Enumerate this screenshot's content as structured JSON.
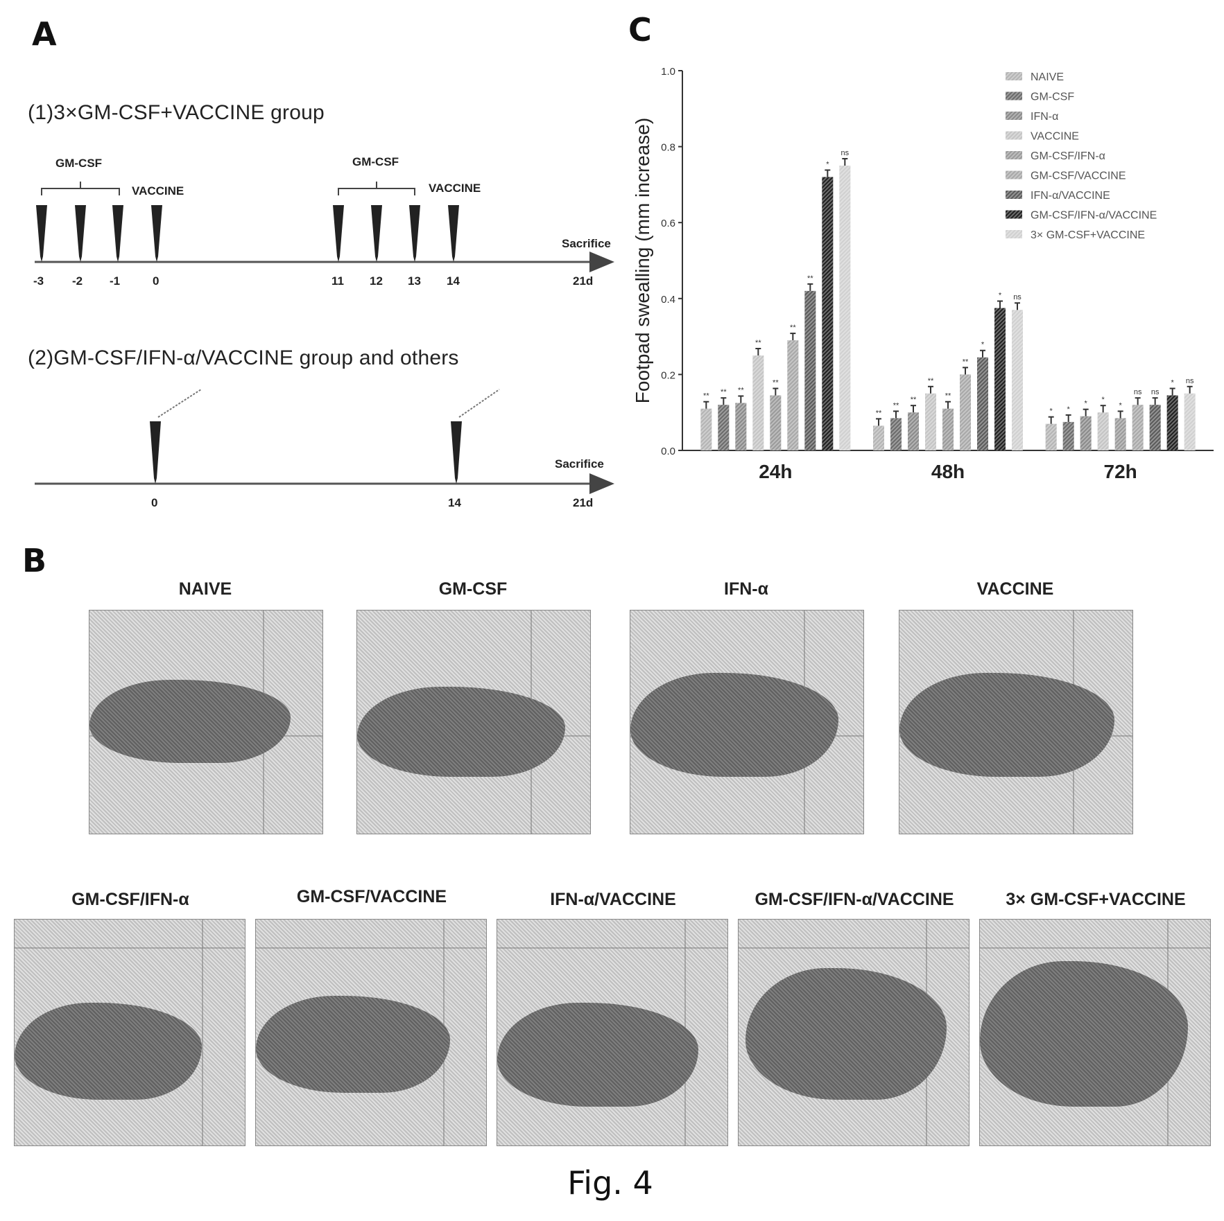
{
  "panels": {
    "a": "A",
    "b": "B",
    "c": "C"
  },
  "caption": "Fig. 4",
  "timeline1": {
    "title": "(1)3×GM-CSF+VACCINE group",
    "gm_label_1": "GM-CSF",
    "vac_label_1": "VACCINE",
    "gm_label_2": "GM-CSF",
    "vac_label_2": "VACCINE",
    "end_label": "Sacrifice",
    "ticks": [
      "-3",
      "-2",
      "-1",
      "0",
      "11",
      "12",
      "13",
      "14",
      "21d"
    ]
  },
  "timeline2": {
    "title": "(2)GM-CSF/IFN-α/VACCINE group and others",
    "end_label": "Sacrifice",
    "ticks": [
      "0",
      "14",
      "21d"
    ]
  },
  "photos": {
    "row1": [
      "NAIVE",
      "GM-CSF",
      "IFN-α",
      "VACCINE"
    ],
    "row2": [
      "GM-CSF/IFN-α",
      "GM-CSF/VACCINE",
      "IFN-α/VACCINE",
      "GM-CSF/IFN-α/VACCINE",
      "3× GM-CSF+VACCINE"
    ]
  },
  "chart_data": {
    "type": "bar",
    "title": "",
    "xlabel": "",
    "ylabel": "Footpad swealling (mm increase)",
    "ylim": [
      0.0,
      1.0
    ],
    "yticks": [
      "0.0",
      "0.2",
      "0.4",
      "0.6",
      "0.8",
      "1.0"
    ],
    "categories": [
      "24h",
      "48h",
      "72h"
    ],
    "grid": false,
    "legend_position": "top-right",
    "series": [
      {
        "name": "NAIVE",
        "values": [
          0.11,
          0.065,
          0.07
        ],
        "sig": [
          "**",
          "**",
          "*"
        ],
        "color": "#b4b4b4"
      },
      {
        "name": "GM-CSF",
        "values": [
          0.12,
          0.085,
          0.075
        ],
        "sig": [
          "**",
          "**",
          "*"
        ],
        "color": "#6a6a6a"
      },
      {
        "name": "IFN-α",
        "values": [
          0.125,
          0.1,
          0.09
        ],
        "sig": [
          "**",
          "**",
          "*"
        ],
        "color": "#8a8a8a"
      },
      {
        "name": "VACCINE",
        "values": [
          0.25,
          0.15,
          0.1
        ],
        "sig": [
          "**",
          "**",
          "*"
        ],
        "color": "#c4c4c4"
      },
      {
        "name": "GM-CSF/IFN-α",
        "values": [
          0.145,
          0.11,
          0.085
        ],
        "sig": [
          "**",
          "**",
          "*"
        ],
        "color": "#9a9a9a"
      },
      {
        "name": "GM-CSF/VACCINE",
        "values": [
          0.29,
          0.2,
          0.12
        ],
        "sig": [
          "**",
          "**",
          "ns"
        ],
        "color": "#a8a8a8"
      },
      {
        "name": "IFN-α/VACCINE",
        "values": [
          0.42,
          0.245,
          0.12
        ],
        "sig": [
          "**",
          "*",
          "ns"
        ],
        "color": "#5a5a5a"
      },
      {
        "name": "GM-CSF/IFN-α/VACCINE",
        "values": [
          0.72,
          0.375,
          0.145
        ],
        "sig": [
          "*",
          "*",
          "*"
        ],
        "color": "#1f1f1f"
      },
      {
        "name": "3× GM-CSF+VACCINE",
        "values": [
          0.75,
          0.37,
          0.15
        ],
        "sig": [
          "ns",
          "ns",
          "ns"
        ],
        "color": "#d0d0d0"
      }
    ]
  }
}
